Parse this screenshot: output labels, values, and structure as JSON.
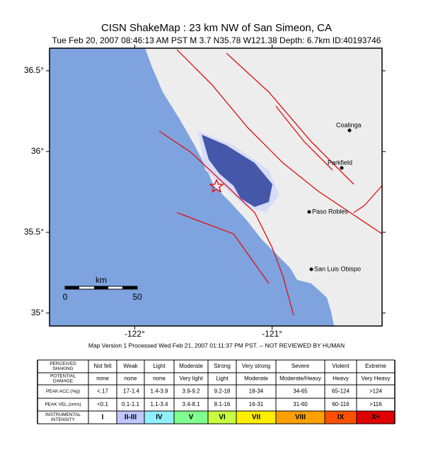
{
  "header": {
    "title": "CISN ShakeMap :  23 km NW of San Simeon, CA",
    "subtitle": "Tue Feb 20, 2007 08:46:13 AM PST   M 3.7   N35.78 W121.38  Depth: 6.7km   ID:40193746"
  },
  "map": {
    "xlim": [
      -122.62,
      -120.2
    ],
    "ylim": [
      34.92,
      36.64
    ],
    "yticks": [
      {
        "value": 36.5,
        "label": "36.5°"
      },
      {
        "value": 36,
        "label": "36°"
      },
      {
        "value": 35.5,
        "label": "35.5°"
      },
      {
        "value": 35,
        "label": "35°"
      }
    ],
    "xticks": [
      {
        "value": -122,
        "label": "-122°"
      },
      {
        "value": -121,
        "label": "-121°"
      }
    ],
    "cities": [
      "Coalinga",
      "Parkfield",
      "Paso Robles",
      "San Luis Obispo"
    ],
    "scale": {
      "title": "km",
      "start": "0",
      "end": "50"
    }
  },
  "note": "Map Version 1 Processed Wed Feb 21, 2007 01:11:37 PM PST. -- NOT REVIEWED BY HUMAN",
  "legend": {
    "rows": [
      {
        "label": [
          "PERCEIVED",
          "SHAKING"
        ],
        "cells": [
          "Not felt",
          "Weak",
          "Light",
          "Moderate",
          "Strong",
          "Very strong",
          "Severe",
          "Violent",
          "Extreme"
        ]
      },
      {
        "label": [
          "POTENTIAL",
          "DAMAGE"
        ],
        "cells": [
          "none",
          "none",
          "none",
          "Very light",
          "Light",
          "Moderate",
          "Moderate/Heavy",
          "Heavy",
          "Very Heavy"
        ]
      },
      {
        "label": [
          "PEAK ACC.(%g)"
        ],
        "cells": [
          "<.17",
          ".17-1.4",
          "1.4-3.9",
          "3.9-9.2",
          "9.2-18",
          "18-34",
          "34-65",
          "65-124",
          ">124"
        ]
      },
      {
        "label": [
          "PEAK VEL.(cm/s)"
        ],
        "cells": [
          "<0.1",
          "0.1-1.1",
          "1.1-3.4",
          "3.4-8.1",
          "8.1-16",
          "16-31",
          "31-60",
          "60-116",
          ">116"
        ]
      },
      {
        "label": [
          "INSTRUMENTAL",
          "INTENSITY"
        ],
        "cells": [
          "I",
          "II-III",
          "IV",
          "V",
          "VI",
          "VII",
          "VIII",
          "IX",
          "X+"
        ]
      }
    ],
    "colors": [
      "#ffffff",
      "#c0c8ff",
      "#90f0ff",
      "#80ff90",
      "#c8ff40",
      "#ffee00",
      "#ffa000",
      "#ff5000",
      "#e00000"
    ]
  }
}
